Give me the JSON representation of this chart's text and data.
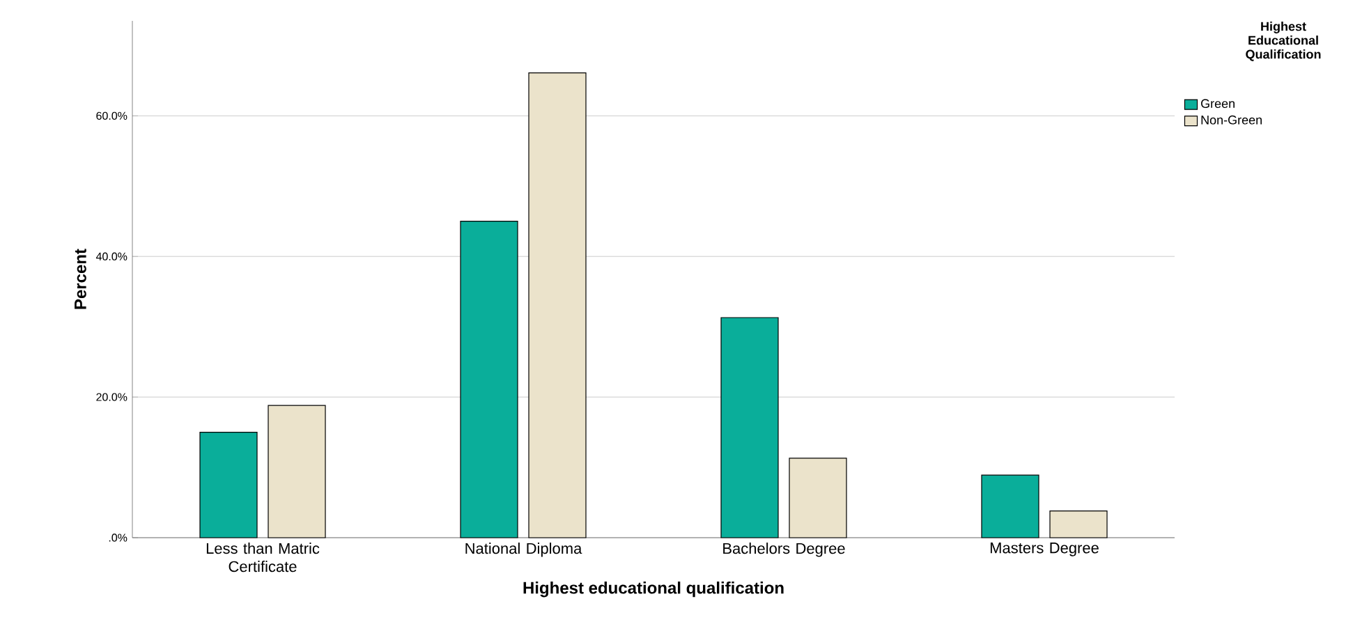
{
  "chart_data": {
    "type": "bar",
    "xlabel": "Highest educational qualification",
    "ylabel": "Percent",
    "legend_title": "Highest Educational Qualification",
    "categories": [
      "Less than Matric Certificate",
      "National Diploma",
      "Bachelors Degree",
      "Masters Degree"
    ],
    "series": [
      {
        "name": "Green",
        "color": "#0aae9a",
        "values": [
          15.0,
          45.0,
          31.3,
          8.9
        ]
      },
      {
        "name": "Non-Green",
        "color": "#ebe3cb",
        "values": [
          18.8,
          66.1,
          11.3,
          3.8
        ]
      }
    ],
    "ylim": [
      0,
      73.5
    ],
    "yticks": [
      {
        "value": 0,
        "label": ".0%"
      },
      {
        "value": 20,
        "label": "20.0%"
      },
      {
        "value": 40,
        "label": "40.0%"
      },
      {
        "value": 60,
        "label": "60.0%"
      }
    ],
    "grid": "y",
    "legend": "top right"
  }
}
